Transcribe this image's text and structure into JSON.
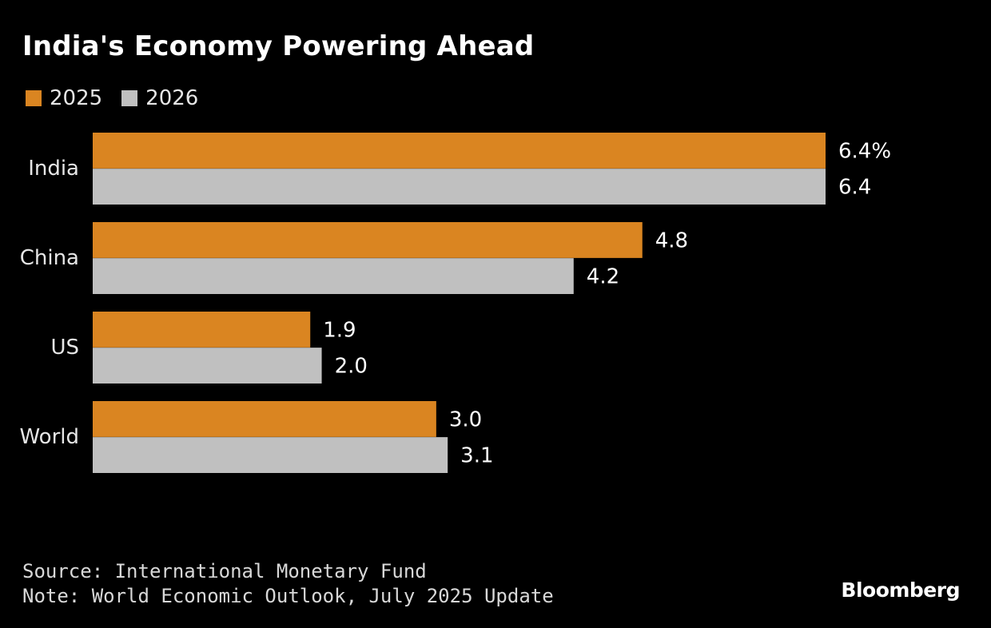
{
  "chart_data": {
    "type": "bar",
    "orientation": "horizontal",
    "title": "India's Economy Powering Ahead",
    "categories": [
      "India",
      "China",
      "US",
      "World"
    ],
    "series": [
      {
        "name": "2025",
        "color": "#DA8521",
        "values": [
          6.4,
          4.8,
          1.9,
          3.0
        ],
        "labels": [
          "6.4%",
          "4.8",
          "1.9",
          "3.0"
        ]
      },
      {
        "name": "2026",
        "color": "#C0C0C0",
        "values": [
          6.4,
          4.2,
          2.0,
          3.1
        ],
        "labels": [
          "6.4",
          "4.2",
          "2.0",
          "3.1"
        ]
      }
    ],
    "xlim": [
      0,
      6.4
    ],
    "xlabel": "",
    "ylabel": "",
    "grid": false,
    "legend": "top-left",
    "source": "Source: International Monetary Fund",
    "note": "Note: World Economic Outlook, July 2025 Update"
  },
  "brand": "Bloomberg",
  "colors": {
    "background": "#000000",
    "text": "#FFFFFF"
  }
}
